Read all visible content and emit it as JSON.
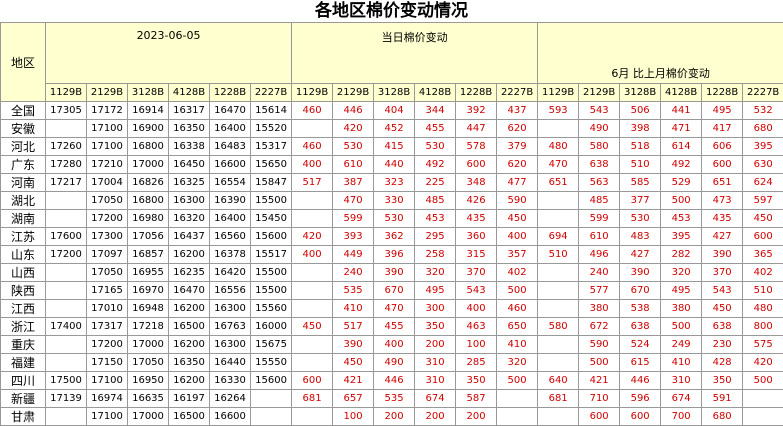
{
  "title": "各地区棉价变动情况",
  "header": {
    "region": "地区",
    "groups": [
      "2023-06-05",
      "当日棉价变动",
      "6月 比上月棉价变动"
    ],
    "codes": [
      "1129B",
      "2129B",
      "3128B",
      "4128B",
      "1228B",
      "2227B"
    ]
  },
  "rows": [
    {
      "region": "全国",
      "prices": [
        17305,
        17172,
        16914,
        16317,
        16470,
        15614
      ],
      "daily": [
        460,
        446,
        404,
        344,
        392,
        437
      ],
      "monthly": [
        593,
        543,
        506,
        441,
        495,
        532
      ]
    },
    {
      "region": "安徽",
      "prices": [
        null,
        17100,
        16900,
        16350,
        16400,
        15520
      ],
      "daily": [
        null,
        420,
        452,
        455,
        447,
        620
      ],
      "monthly": [
        null,
        490,
        398,
        471,
        417,
        680
      ]
    },
    {
      "region": "河北",
      "prices": [
        17260,
        17100,
        16800,
        16338,
        16483,
        15317
      ],
      "daily": [
        460,
        530,
        415,
        530,
        578,
        379
      ],
      "monthly": [
        480,
        580,
        518,
        614,
        606,
        395
      ]
    },
    {
      "region": "广东",
      "prices": [
        17280,
        17210,
        17000,
        16450,
        16600,
        15650
      ],
      "daily": [
        400,
        610,
        440,
        492,
        600,
        620
      ],
      "monthly": [
        470,
        638,
        510,
        492,
        600,
        630
      ]
    },
    {
      "region": "河南",
      "prices": [
        17217,
        17004,
        16826,
        16325,
        16554,
        15847
      ],
      "daily": [
        517,
        387,
        323,
        225,
        348,
        477
      ],
      "monthly": [
        651,
        563,
        585,
        529,
        651,
        624
      ]
    },
    {
      "region": "湖北",
      "prices": [
        null,
        17050,
        16800,
        16300,
        16390,
        15500
      ],
      "daily": [
        null,
        470,
        330,
        485,
        426,
        590
      ],
      "monthly": [
        null,
        485,
        377,
        500,
        473,
        597
      ]
    },
    {
      "region": "湖南",
      "prices": [
        null,
        17200,
        16980,
        16320,
        16400,
        15450
      ],
      "daily": [
        null,
        599,
        530,
        453,
        435,
        450
      ],
      "monthly": [
        null,
        599,
        530,
        453,
        435,
        450
      ]
    },
    {
      "region": "江苏",
      "prices": [
        17600,
        17300,
        17056,
        16437,
        16560,
        15600
      ],
      "daily": [
        420,
        393,
        362,
        295,
        360,
        400
      ],
      "monthly": [
        694,
        610,
        483,
        395,
        427,
        600
      ]
    },
    {
      "region": "山东",
      "prices": [
        17200,
        17097,
        16857,
        16200,
        16378,
        15517
      ],
      "daily": [
        400,
        449,
        396,
        258,
        315,
        357
      ],
      "monthly": [
        510,
        496,
        427,
        282,
        390,
        365
      ]
    },
    {
      "region": "山西",
      "prices": [
        null,
        17050,
        16955,
        16235,
        16420,
        15500
      ],
      "daily": [
        null,
        240,
        390,
        320,
        370,
        402
      ],
      "monthly": [
        null,
        240,
        390,
        320,
        370,
        402
      ]
    },
    {
      "region": "陕西",
      "prices": [
        null,
        17165,
        16970,
        16470,
        16556,
        15500
      ],
      "daily": [
        null,
        535,
        670,
        495,
        543,
        500
      ],
      "monthly": [
        null,
        577,
        670,
        495,
        543,
        510
      ]
    },
    {
      "region": "江西",
      "prices": [
        null,
        17010,
        16948,
        16200,
        16300,
        15560
      ],
      "daily": [
        null,
        410,
        470,
        300,
        400,
        460
      ],
      "monthly": [
        null,
        380,
        538,
        380,
        450,
        480
      ]
    },
    {
      "region": "浙江",
      "prices": [
        17400,
        17317,
        17218,
        16500,
        16763,
        16000
      ],
      "daily": [
        450,
        517,
        455,
        350,
        463,
        650
      ],
      "monthly": [
        580,
        672,
        638,
        500,
        638,
        800
      ]
    },
    {
      "region": "重庆",
      "prices": [
        null,
        17200,
        17000,
        16200,
        16300,
        15675
      ],
      "daily": [
        null,
        390,
        400,
        200,
        100,
        410
      ],
      "monthly": [
        null,
        590,
        524,
        249,
        230,
        575
      ]
    },
    {
      "region": "福建",
      "prices": [
        null,
        17150,
        17050,
        16350,
        16440,
        15550
      ],
      "daily": [
        null,
        450,
        490,
        310,
        285,
        320
      ],
      "monthly": [
        null,
        500,
        615,
        410,
        428,
        420
      ]
    },
    {
      "region": "四川",
      "prices": [
        17500,
        17100,
        16950,
        16200,
        16330,
        15600
      ],
      "daily": [
        600,
        421,
        446,
        310,
        350,
        500
      ],
      "monthly": [
        640,
        421,
        446,
        310,
        350,
        500
      ]
    },
    {
      "region": "新疆",
      "prices": [
        17139,
        16974,
        16635,
        16197,
        16264,
        null
      ],
      "daily": [
        681,
        657,
        535,
        674,
        587,
        null
      ],
      "monthly": [
        681,
        710,
        596,
        674,
        591,
        null
      ]
    },
    {
      "region": "甘肃",
      "prices": [
        null,
        17100,
        17000,
        16500,
        16600,
        null
      ],
      "daily": [
        null,
        100,
        200,
        200,
        200,
        null
      ],
      "monthly": [
        null,
        600,
        600,
        700,
        680,
        null
      ]
    }
  ]
}
